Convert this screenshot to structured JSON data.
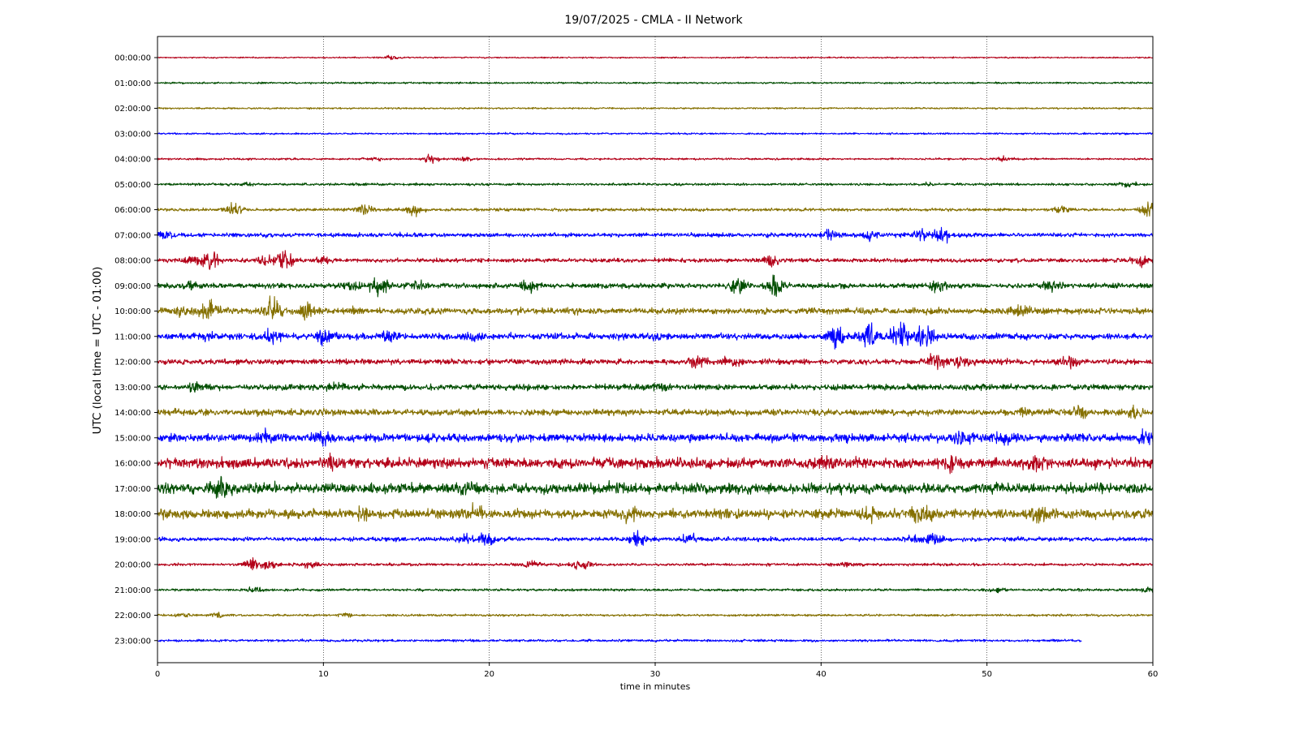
{
  "chart_data": {
    "type": "line",
    "title": "19/07/2025 - CMLA - II Network",
    "xlabel": "time in minutes",
    "ylabel": "UTC (local time = UTC - 01:00)",
    "xlim": [
      0,
      60
    ],
    "x_ticks": [
      "0",
      "10",
      "20",
      "30",
      "40",
      "50",
      "60"
    ],
    "x_grid": "dotted vertical lines at every 10 minutes",
    "colors": [
      "#b30018",
      "#004d00",
      "#857000",
      "#0000ff"
    ],
    "series": [
      {
        "name": "00:00:00",
        "color": "#b30018",
        "level": 0.1,
        "events": [
          {
            "x": 14.1,
            "amp": 0.35
          }
        ]
      },
      {
        "name": "01:00:00",
        "color": "#004d00",
        "level": 0.13,
        "events": []
      },
      {
        "name": "02:00:00",
        "color": "#857000",
        "level": 0.12,
        "events": []
      },
      {
        "name": "03:00:00",
        "color": "#0000ff",
        "level": 0.13,
        "events": []
      },
      {
        "name": "04:00:00",
        "color": "#b30018",
        "level": 0.14,
        "events": [
          {
            "x": 13.0,
            "amp": 0.35
          },
          {
            "x": 16.5,
            "amp": 0.5
          },
          {
            "x": 18.5,
            "amp": 0.3
          },
          {
            "x": 51.0,
            "amp": 0.3
          }
        ]
      },
      {
        "name": "05:00:00",
        "color": "#004d00",
        "level": 0.18,
        "events": [
          {
            "x": 5.5,
            "amp": 0.2
          },
          {
            "x": 46.5,
            "amp": 0.25
          },
          {
            "x": 58.5,
            "amp": 0.25
          }
        ]
      },
      {
        "name": "06:00:00",
        "color": "#857000",
        "level": 0.22,
        "events": [
          {
            "x": 4.6,
            "amp": 0.7
          },
          {
            "x": 12.5,
            "amp": 0.8
          },
          {
            "x": 15.5,
            "amp": 0.6
          },
          {
            "x": 54.5,
            "amp": 0.5
          },
          {
            "x": 59.8,
            "amp": 1.0
          }
        ]
      },
      {
        "name": "07:00:00",
        "color": "#0000ff",
        "level": 0.3,
        "events": [
          {
            "x": 0.5,
            "amp": 0.45
          },
          {
            "x": 40.5,
            "amp": 0.9
          },
          {
            "x": 43.0,
            "amp": 0.7
          },
          {
            "x": 46.0,
            "amp": 0.6
          },
          {
            "x": 47.3,
            "amp": 1.2
          }
        ]
      },
      {
        "name": "08:00:00",
        "color": "#b30018",
        "level": 0.3,
        "events": [
          {
            "x": 2.0,
            "amp": 0.5
          },
          {
            "x": 3.1,
            "amp": 1.3
          },
          {
            "x": 6.5,
            "amp": 0.6
          },
          {
            "x": 7.6,
            "amp": 1.3
          },
          {
            "x": 10.0,
            "amp": 0.4
          },
          {
            "x": 37.0,
            "amp": 0.6
          },
          {
            "x": 59.2,
            "amp": 0.7
          }
        ]
      },
      {
        "name": "09:00:00",
        "color": "#004d00",
        "level": 0.38,
        "events": [
          {
            "x": 2.0,
            "amp": 0.5
          },
          {
            "x": 11.5,
            "amp": 0.9
          },
          {
            "x": 13.3,
            "amp": 1.2
          },
          {
            "x": 15.5,
            "amp": 0.7
          },
          {
            "x": 22.5,
            "amp": 0.8
          },
          {
            "x": 35.0,
            "amp": 1.0
          },
          {
            "x": 37.3,
            "amp": 1.4
          },
          {
            "x": 47.0,
            "amp": 0.6
          },
          {
            "x": 54.0,
            "amp": 0.5
          }
        ]
      },
      {
        "name": "10:00:00",
        "color": "#857000",
        "level": 0.45,
        "events": [
          {
            "x": 1.5,
            "amp": 0.9
          },
          {
            "x": 3.1,
            "amp": 1.6
          },
          {
            "x": 7.0,
            "amp": 1.8
          },
          {
            "x": 9.0,
            "amp": 1.0
          },
          {
            "x": 12.0,
            "amp": 0.5
          },
          {
            "x": 52.0,
            "amp": 0.7
          }
        ]
      },
      {
        "name": "11:00:00",
        "color": "#0000ff",
        "level": 0.45,
        "events": [
          {
            "x": 3.0,
            "amp": 0.5
          },
          {
            "x": 7.0,
            "amp": 0.8
          },
          {
            "x": 10.0,
            "amp": 0.9
          },
          {
            "x": 14.0,
            "amp": 0.5
          },
          {
            "x": 19.0,
            "amp": 0.6
          },
          {
            "x": 30.0,
            "amp": 0.5
          },
          {
            "x": 41.0,
            "amp": 1.4
          },
          {
            "x": 42.8,
            "amp": 1.8
          },
          {
            "x": 44.8,
            "amp": 1.9
          },
          {
            "x": 46.3,
            "amp": 1.1
          }
        ]
      },
      {
        "name": "12:00:00",
        "color": "#b30018",
        "level": 0.4,
        "events": [
          {
            "x": 32.5,
            "amp": 0.6
          },
          {
            "x": 34.5,
            "amp": 0.6
          },
          {
            "x": 47.0,
            "amp": 1.0
          },
          {
            "x": 48.5,
            "amp": 0.7
          },
          {
            "x": 55.0,
            "amp": 0.7
          }
        ]
      },
      {
        "name": "13:00:00",
        "color": "#004d00",
        "level": 0.42,
        "events": [
          {
            "x": 2.3,
            "amp": 0.5
          },
          {
            "x": 10.8,
            "amp": 0.4
          },
          {
            "x": 30.3,
            "amp": 0.5
          }
        ]
      },
      {
        "name": "14:00:00",
        "color": "#857000",
        "level": 0.45,
        "events": [
          {
            "x": 10.0,
            "amp": 0.35
          },
          {
            "x": 52.0,
            "amp": 0.5
          },
          {
            "x": 55.5,
            "amp": 0.6
          },
          {
            "x": 59.0,
            "amp": 0.6
          }
        ]
      },
      {
        "name": "15:00:00",
        "color": "#0000ff",
        "level": 0.6,
        "events": [
          {
            "x": 6.5,
            "amp": 0.6
          },
          {
            "x": 10.0,
            "amp": 0.7
          },
          {
            "x": 48.5,
            "amp": 0.9
          },
          {
            "x": 51.0,
            "amp": 0.9
          },
          {
            "x": 59.5,
            "amp": 0.6
          }
        ]
      },
      {
        "name": "16:00:00",
        "color": "#b30018",
        "level": 0.75,
        "events": [
          {
            "x": 10.5,
            "amp": 0.6
          },
          {
            "x": 40.3,
            "amp": 0.7
          },
          {
            "x": 47.8,
            "amp": 0.7
          },
          {
            "x": 53.0,
            "amp": 0.9
          }
        ]
      },
      {
        "name": "17:00:00",
        "color": "#004d00",
        "level": 0.75,
        "events": [
          {
            "x": 3.8,
            "amp": 0.9
          },
          {
            "x": 18.7,
            "amp": 0.8
          },
          {
            "x": 27.5,
            "amp": 0.6
          }
        ]
      },
      {
        "name": "18:00:00",
        "color": "#857000",
        "level": 0.7,
        "events": [
          {
            "x": 12.5,
            "amp": 0.6
          },
          {
            "x": 19.0,
            "amp": 0.9
          },
          {
            "x": 28.5,
            "amp": 0.7
          },
          {
            "x": 43.0,
            "amp": 0.8
          },
          {
            "x": 46.0,
            "amp": 0.9
          },
          {
            "x": 53.0,
            "amp": 0.9
          }
        ]
      },
      {
        "name": "19:00:00",
        "color": "#0000ff",
        "level": 0.3,
        "events": [
          {
            "x": 18.5,
            "amp": 0.6
          },
          {
            "x": 19.8,
            "amp": 0.9
          },
          {
            "x": 29.0,
            "amp": 0.9
          },
          {
            "x": 32.0,
            "amp": 0.6
          },
          {
            "x": 45.5,
            "amp": 0.5
          },
          {
            "x": 46.8,
            "amp": 0.8
          }
        ]
      },
      {
        "name": "20:00:00",
        "color": "#b30018",
        "level": 0.2,
        "events": [
          {
            "x": 5.7,
            "amp": 0.8
          },
          {
            "x": 6.8,
            "amp": 0.6
          },
          {
            "x": 9.2,
            "amp": 0.4
          },
          {
            "x": 22.5,
            "amp": 0.5
          },
          {
            "x": 25.5,
            "amp": 0.7
          },
          {
            "x": 41.7,
            "amp": 0.3
          }
        ]
      },
      {
        "name": "21:00:00",
        "color": "#004d00",
        "level": 0.18,
        "events": [
          {
            "x": 5.8,
            "amp": 0.3
          },
          {
            "x": 50.7,
            "amp": 0.3
          },
          {
            "x": 59.9,
            "amp": 0.35
          }
        ]
      },
      {
        "name": "22:00:00",
        "color": "#857000",
        "level": 0.16,
        "events": [
          {
            "x": 1.5,
            "amp": 0.3
          },
          {
            "x": 3.8,
            "amp": 0.35
          },
          {
            "x": 11.3,
            "amp": 0.25
          }
        ]
      },
      {
        "name": "23:00:00",
        "color": "#0000ff",
        "level": 0.18,
        "end_minute": 55.7,
        "events": []
      }
    ]
  }
}
